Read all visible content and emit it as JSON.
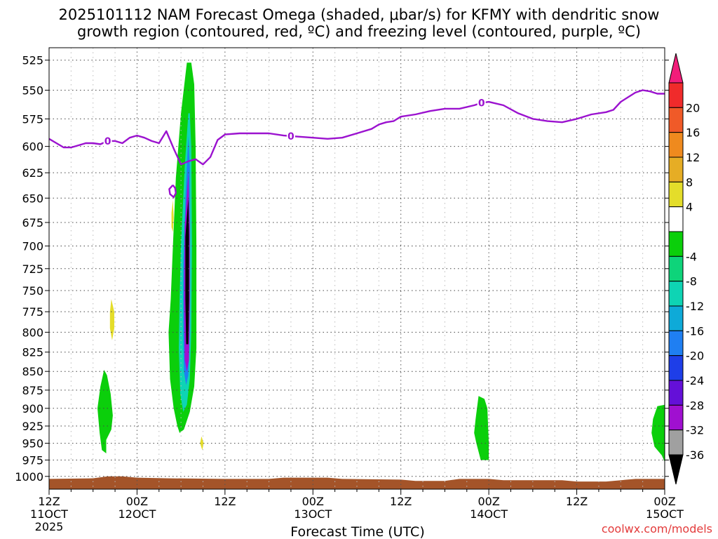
{
  "chart_data": {
    "type": "heatmap",
    "title_line1": "2025101112 NAM Forecast Omega (shaded, μbar/s) for KFMY with dendritic snow",
    "title_line2": "growth region (contoured, red, ºC) and freezing level (contoured, purple, ºC)",
    "xlabel": "Forecast Time (UTC)",
    "ylabel": "",
    "credit": "coolwx.com/models",
    "y_axis": {
      "scale": "log-pressure",
      "range": [
        1020,
        515
      ],
      "ticks": [
        525,
        550,
        575,
        600,
        625,
        650,
        675,
        700,
        725,
        750,
        775,
        800,
        825,
        850,
        875,
        900,
        925,
        950,
        975,
        1000
      ]
    },
    "x_axis": {
      "range_hours": [
        0,
        84
      ],
      "ticks": [
        {
          "h": 0,
          "line1": "12Z",
          "line2": "11OCT",
          "line3": "2025"
        },
        {
          "h": 12,
          "line1": "00Z",
          "line2": "12OCT",
          "line3": ""
        },
        {
          "h": 24,
          "line1": "12Z",
          "line2": "",
          "line3": ""
        },
        {
          "h": 36,
          "line1": "00Z",
          "line2": "13OCT",
          "line3": ""
        },
        {
          "h": 48,
          "line1": "12Z",
          "line2": "",
          "line3": ""
        },
        {
          "h": 60,
          "line1": "00Z",
          "line2": "14OCT",
          "line3": ""
        },
        {
          "h": 72,
          "line1": "12Z",
          "line2": "",
          "line3": ""
        },
        {
          "h": 84,
          "line1": "00Z",
          "line2": "15OCT",
          "line3": ""
        }
      ]
    },
    "grid": true,
    "colorbar": {
      "placement": "right",
      "labels": [
        20,
        16,
        12,
        8,
        4,
        -4,
        -8,
        -12,
        -16,
        -20,
        -24,
        -28,
        -32,
        -36
      ],
      "colors": [
        "#f21d7a",
        "#f02b2b",
        "#f05a28",
        "#ef8a1e",
        "#e6ad25",
        "#e4dd2a",
        "#ffffff",
        "#0bcf0b",
        "#0ed47a",
        "#0ed4b4",
        "#0eaad8",
        "#1f7ff2",
        "#1e3ee8",
        "#6410d8",
        "#a010d0",
        "#a0a0a0",
        "#000000"
      ]
    },
    "freezing_level": {
      "color": "#9b12cf",
      "label": "0",
      "points": [
        [
          0,
          593
        ],
        [
          1,
          597
        ],
        [
          2,
          601
        ],
        [
          3,
          601
        ],
        [
          4,
          599
        ],
        [
          5,
          597
        ],
        [
          6,
          597
        ],
        [
          7,
          598
        ],
        [
          8,
          595
        ],
        [
          9,
          595
        ],
        [
          10,
          597
        ],
        [
          11,
          592
        ],
        [
          12,
          590
        ],
        [
          13,
          592
        ],
        [
          14,
          595
        ],
        [
          15,
          597
        ],
        [
          16,
          586
        ],
        [
          17,
          602
        ],
        [
          18,
          617
        ],
        [
          19,
          614
        ],
        [
          20,
          612
        ],
        [
          21,
          617
        ],
        [
          22,
          610
        ],
        [
          23,
          594
        ],
        [
          24,
          589
        ],
        [
          26,
          588
        ],
        [
          28,
          588
        ],
        [
          30,
          588
        ],
        [
          32,
          590
        ],
        [
          34,
          591
        ],
        [
          36,
          592
        ],
        [
          38,
          593
        ],
        [
          40,
          592
        ],
        [
          42,
          588
        ],
        [
          44,
          584
        ],
        [
          45,
          580
        ],
        [
          46,
          578
        ],
        [
          47,
          577
        ],
        [
          48,
          573
        ],
        [
          50,
          571
        ],
        [
          52,
          568
        ],
        [
          54,
          566
        ],
        [
          56,
          566
        ],
        [
          58,
          563
        ],
        [
          59,
          561
        ],
        [
          60,
          560
        ],
        [
          62,
          563
        ],
        [
          64,
          570
        ],
        [
          66,
          575
        ],
        [
          68,
          577
        ],
        [
          70,
          578
        ],
        [
          72,
          575
        ],
        [
          74,
          571
        ],
        [
          76,
          569
        ],
        [
          77,
          567
        ],
        [
          78,
          560
        ],
        [
          80,
          552
        ],
        [
          81,
          550
        ],
        [
          82,
          551
        ],
        [
          83,
          553
        ],
        [
          84,
          553
        ]
      ],
      "label_hours": [
        8,
        33,
        59
      ]
    },
    "dgz_contour": {
      "color": "#9b12cf",
      "points": [
        [
          16.9,
          637
        ],
        [
          16.4,
          641
        ],
        [
          16.5,
          646
        ],
        [
          17.0,
          649
        ],
        [
          17.3,
          645
        ],
        [
          17.2,
          640
        ],
        [
          16.9,
          637
        ]
      ]
    },
    "omega_regions": [
      {
        "name": "green-band-column",
        "level": -4,
        "points": [
          [
            18.8,
            527
          ],
          [
            18.0,
            570
          ],
          [
            17.3,
            630
          ],
          [
            16.9,
            700
          ],
          [
            16.6,
            760
          ],
          [
            16.3,
            800
          ],
          [
            16.5,
            860
          ],
          [
            17.0,
            900
          ],
          [
            17.5,
            925
          ],
          [
            17.8,
            935
          ],
          [
            18.4,
            930
          ],
          [
            19.2,
            905
          ],
          [
            19.8,
            870
          ],
          [
            20.1,
            820
          ],
          [
            20.1,
            700
          ],
          [
            20.0,
            600
          ],
          [
            19.8,
            545
          ],
          [
            19.4,
            527
          ],
          [
            18.8,
            527
          ]
        ]
      },
      {
        "name": "teal-band-column",
        "level": -12,
        "points": [
          [
            19.0,
            570
          ],
          [
            18.5,
            620
          ],
          [
            18.0,
            700
          ],
          [
            17.8,
            760
          ],
          [
            17.7,
            820
          ],
          [
            17.9,
            880
          ],
          [
            18.3,
            905
          ],
          [
            18.8,
            895
          ],
          [
            19.2,
            860
          ],
          [
            19.4,
            800
          ],
          [
            19.5,
            700
          ],
          [
            19.4,
            600
          ],
          [
            19.2,
            570
          ],
          [
            19.0,
            570
          ]
        ]
      },
      {
        "name": "blue-band-column",
        "level": -20,
        "points": [
          [
            19.0,
            590
          ],
          [
            18.6,
            650
          ],
          [
            18.3,
            720
          ],
          [
            18.3,
            800
          ],
          [
            18.4,
            850
          ],
          [
            18.7,
            868
          ],
          [
            19.0,
            855
          ],
          [
            19.2,
            800
          ],
          [
            19.2,
            700
          ],
          [
            19.2,
            620
          ],
          [
            19.0,
            590
          ]
        ]
      },
      {
        "name": "purple-band-column",
        "level": -28,
        "points": [
          [
            19.0,
            625
          ],
          [
            18.5,
            680
          ],
          [
            18.4,
            760
          ],
          [
            18.5,
            835
          ],
          [
            18.8,
            850
          ],
          [
            19.1,
            835
          ],
          [
            19.2,
            760
          ],
          [
            19.2,
            680
          ],
          [
            19.0,
            625
          ]
        ]
      },
      {
        "name": "black-core-column",
        "level": -36,
        "points": [
          [
            19.0,
            650
          ],
          [
            18.6,
            690
          ],
          [
            18.6,
            760
          ],
          [
            18.7,
            815
          ],
          [
            19.0,
            815
          ],
          [
            19.1,
            760
          ],
          [
            19.1,
            690
          ],
          [
            19.0,
            650
          ]
        ]
      },
      {
        "name": "green-blob-left",
        "level": -4,
        "points": [
          [
            7.5,
            848
          ],
          [
            7.0,
            870
          ],
          [
            6.6,
            900
          ],
          [
            6.9,
            935
          ],
          [
            7.2,
            960
          ],
          [
            7.8,
            965
          ],
          [
            7.8,
            945
          ],
          [
            8.5,
            930
          ],
          [
            8.7,
            910
          ],
          [
            8.4,
            880
          ],
          [
            7.9,
            855
          ],
          [
            7.5,
            848
          ]
        ]
      },
      {
        "name": "green-blob-mid",
        "level": -4,
        "points": [
          [
            58.6,
            883
          ],
          [
            58.2,
            915
          ],
          [
            58.0,
            935
          ],
          [
            58.3,
            950
          ],
          [
            58.9,
            975
          ],
          [
            60.0,
            975
          ],
          [
            60.0,
            950
          ],
          [
            59.8,
            900
          ],
          [
            59.4,
            887
          ],
          [
            58.6,
            883
          ]
        ]
      },
      {
        "name": "green-blob-right",
        "level": -4,
        "points": [
          [
            84.0,
            895
          ],
          [
            83.0,
            897
          ],
          [
            82.4,
            915
          ],
          [
            82.2,
            935
          ],
          [
            82.6,
            955
          ],
          [
            83.6,
            968
          ],
          [
            84.0,
            978
          ],
          [
            84.0,
            895
          ]
        ]
      },
      {
        "name": "yellow-sliver-1",
        "level": 4,
        "points": [
          [
            8.5,
            760
          ],
          [
            8.3,
            775
          ],
          [
            8.3,
            795
          ],
          [
            8.6,
            810
          ],
          [
            8.9,
            795
          ],
          [
            8.9,
            775
          ],
          [
            8.5,
            760
          ]
        ]
      },
      {
        "name": "yellow-sliver-2",
        "level": 4,
        "points": [
          [
            16.9,
            652
          ],
          [
            16.7,
            665
          ],
          [
            16.7,
            680
          ],
          [
            16.9,
            685
          ],
          [
            17.0,
            670
          ],
          [
            16.9,
            652
          ]
        ]
      },
      {
        "name": "yellow-sliver-3",
        "level": 4,
        "points": [
          [
            20.8,
            940
          ],
          [
            20.6,
            950
          ],
          [
            20.9,
            960
          ],
          [
            21.1,
            950
          ],
          [
            20.8,
            940
          ]
        ]
      }
    ],
    "terrain": {
      "color": "#a45429",
      "top_points": [
        [
          0,
          1004
        ],
        [
          6,
          1003
        ],
        [
          8,
          1000
        ],
        [
          10,
          1000
        ],
        [
          12,
          1002
        ],
        [
          16,
          1003
        ],
        [
          24,
          1004
        ],
        [
          30,
          1004
        ],
        [
          32,
          1002
        ],
        [
          38,
          1002
        ],
        [
          40,
          1004
        ],
        [
          48,
          1005
        ],
        [
          50,
          1007
        ],
        [
          54,
          1007
        ],
        [
          56,
          1004
        ],
        [
          60,
          1004
        ],
        [
          62,
          1006
        ],
        [
          70,
          1006
        ],
        [
          72,
          1008
        ],
        [
          76,
          1008
        ],
        [
          80,
          1004
        ],
        [
          84,
          1004
        ]
      ]
    }
  }
}
